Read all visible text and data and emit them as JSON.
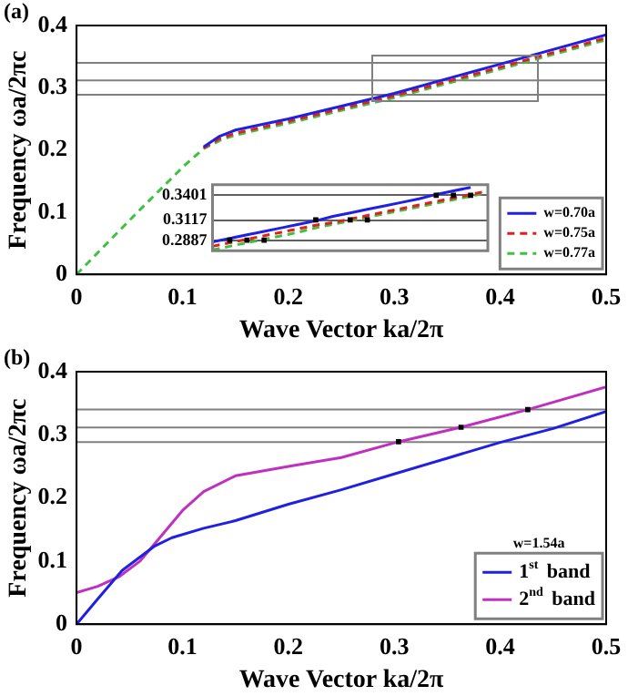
{
  "chart_data": [
    {
      "type": "line",
      "annotations": [
        "(a)"
      ],
      "xlabel": "Wave Vector ka/2π",
      "ylabel": "Frequency ωa/2πc",
      "xlim": [
        0,
        0.5
      ],
      "ylim": [
        0,
        0.4
      ],
      "xticks": [
        0,
        0.1,
        0.2,
        0.3,
        0.4,
        0.5
      ],
      "yticks": [
        0,
        0.1,
        0.2,
        0.3,
        0.4
      ],
      "grid": false,
      "legend": "bottom right",
      "ref_lines": [
        {
          "axis": "y",
          "value": 0.2887,
          "color": "#808080"
        },
        {
          "axis": "y",
          "value": 0.3117,
          "color": "#808080"
        },
        {
          "axis": "y",
          "value": 0.3401,
          "color": "#808080"
        }
      ],
      "series": [
        {
          "name": "w=0.70a",
          "color": "#2020e0",
          "line_style": "solid",
          "x": [
            0.12,
            0.135,
            0.15,
            0.2,
            0.3,
            0.4,
            0.5
          ],
          "values": [
            0.205,
            0.222,
            0.232,
            0.25,
            0.291,
            0.338,
            0.385
          ]
        },
        {
          "name": "w=0.75a",
          "color": "#e02020",
          "line_style": "dashed",
          "x": [
            0.12,
            0.135,
            0.15,
            0.2,
            0.3,
            0.4,
            0.5
          ],
          "values": [
            0.203,
            0.218,
            0.227,
            0.246,
            0.287,
            0.333,
            0.38
          ]
        },
        {
          "name": "w=0.77a",
          "color": "#40c040",
          "line_style": "dashed",
          "x": [
            0,
            0.05,
            0.1,
            0.12,
            0.135,
            0.15,
            0.2,
            0.3,
            0.4,
            0.5
          ],
          "values": [
            0,
            0.087,
            0.172,
            0.202,
            0.215,
            0.224,
            0.243,
            0.284,
            0.33,
            0.377
          ]
        }
      ]
    },
    {
      "type": "line",
      "categories": [
        null,
        null,
        null,
        null,
        null,
        null,
        null,
        null,
        null,
        null,
        null,
        null,
        null,
        null,
        null,
        null,
        null
      ],
      "ylim": [
        0.277,
        0.352
      ],
      "yticks": [
        0.2887,
        0.3117,
        0.3401
      ],
      "grid": "y",
      "tick_labels": "y",
      "series": [
        {
          "color": "#2020e0",
          "line_style": "solid",
          "values": [
            0.287,
            0.291,
            0.295,
            0.299,
            0.303,
            0.307,
            0.311,
            0.316,
            0.32,
            0.324,
            0.328,
            0.332,
            0.336,
            0.341,
            0.345,
            0.349,
            null
          ]
        },
        {
          "color": "#e02020",
          "line_style": "dashed",
          "values": [
            0.282,
            0.286,
            0.29,
            0.294,
            0.298,
            0.302,
            0.306,
            0.309,
            0.313,
            0.317,
            0.321,
            0.325,
            0.329,
            0.333,
            0.337,
            0.341,
            0.345
          ]
        },
        {
          "color": "#40c040",
          "line_style": "dashed",
          "values": [
            0.278,
            0.282,
            0.286,
            0.29,
            0.294,
            0.298,
            0.303,
            0.307,
            0.311,
            0.315,
            0.319,
            0.323,
            0.327,
            0.331,
            0.335,
            0.339,
            0.343
          ]
        },
        {
          "type": "scatter",
          "marker": "square",
          "color": "#000000",
          "values": [
            null,
            0.289,
            null,
            null,
            null,
            null,
            0.312,
            null,
            null,
            null,
            null,
            null,
            null,
            0.34,
            null,
            null,
            null
          ]
        },
        {
          "type": "scatter",
          "marker": "square",
          "color": "#000000",
          "values": [
            null,
            null,
            0.289,
            null,
            null,
            null,
            null,
            null,
            0.312,
            null,
            null,
            null,
            null,
            null,
            0.34,
            null,
            null
          ]
        },
        {
          "type": "scatter",
          "marker": "square",
          "color": "#000000",
          "values": [
            null,
            null,
            null,
            0.289,
            null,
            null,
            null,
            null,
            null,
            0.312,
            null,
            null,
            null,
            null,
            null,
            0.34,
            null
          ]
        }
      ]
    },
    {
      "type": "line",
      "annotations": [
        "(b)"
      ],
      "xlabel": "Wave Vector ka/2π",
      "ylabel": "Frequency ωa/2πc",
      "xlim": [
        0,
        0.5
      ],
      "ylim": [
        0,
        0.4
      ],
      "xticks": [
        0,
        0.1,
        0.2,
        0.3,
        0.4,
        0.5
      ],
      "yticks": [
        0,
        0.1,
        0.2,
        0.3,
        0.4
      ],
      "grid": false,
      "legend": "bottom right",
      "legend_title": "w=1.54a",
      "ref_lines": [
        {
          "axis": "y",
          "value": 0.2887,
          "color": "#808080"
        },
        {
          "axis": "y",
          "value": 0.3117,
          "color": "#808080"
        },
        {
          "axis": "y",
          "value": 0.3401,
          "color": "#808080"
        }
      ],
      "series": [
        {
          "name": "1$^{st}$ band",
          "color": "#2020e0",
          "line_style": "solid",
          "x": [
            0,
            0.02,
            0.043,
            0.073,
            0.09,
            0.12,
            0.15,
            0.2,
            0.25,
            0.3,
            0.35,
            0.4,
            0.45,
            0.5
          ],
          "values": [
            0,
            0.04,
            0.085,
            0.123,
            0.137,
            0.152,
            0.164,
            0.19,
            0.213,
            0.238,
            0.263,
            0.288,
            0.31,
            0.337
          ]
        },
        {
          "name": "2$^{nd}$ band",
          "color": "#c030c0",
          "line_style": "solid",
          "x": [
            0,
            0.02,
            0.04,
            0.06,
            0.08,
            0.1,
            0.12,
            0.15,
            0.2,
            0.25,
            0.304,
            0.363,
            0.426,
            0.5
          ],
          "values": [
            0.05,
            0.06,
            0.075,
            0.1,
            0.14,
            0.18,
            0.21,
            0.235,
            0.25,
            0.264,
            0.289,
            0.312,
            0.34,
            0.376
          ]
        },
        {
          "type": "scatter",
          "marker": "square",
          "color": "#000000",
          "x": [
            0.304,
            0.363,
            0.426
          ],
          "values": [
            0.289,
            0.312,
            0.34
          ]
        }
      ]
    }
  ]
}
